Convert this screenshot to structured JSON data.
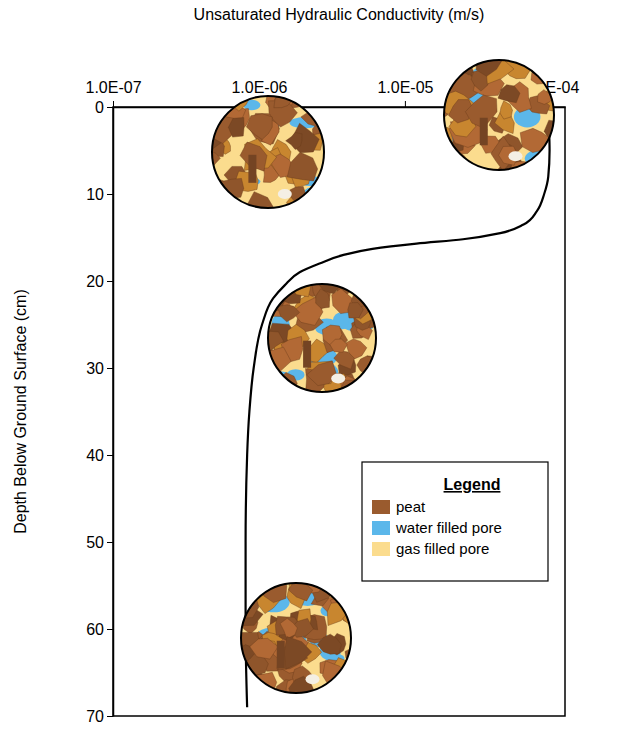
{
  "chart_data": {
    "type": "line",
    "x_label": "Unsaturated Hydraulic Conductivity (m/s)",
    "y_label": "Depth Below Ground Surface (cm)",
    "log": "x",
    "grid": false,
    "xlim": [
      1e-07,
      0.000125
    ],
    "xticks": [
      {
        "value": 1e-07,
        "label": "1.0E-07"
      },
      {
        "value": 1e-06,
        "label": "1.0E-06"
      },
      {
        "value": 1e-05,
        "label": "1.0E-05"
      },
      {
        "value": 0.0001,
        "label": "1.0E-04"
      }
    ],
    "ylim": [
      0,
      70
    ],
    "yticks": [
      0,
      10,
      20,
      30,
      40,
      50,
      60,
      70
    ],
    "color": "#000000",
    "x": [
      9.6e-05,
      9.7e-05,
      9.8e-05,
      9.6e-05,
      9e-05,
      8e-05,
      6.5e-05,
      4.5e-05,
      2.5e-05,
      1.2e-05,
      6e-06,
      3.8e-06,
      2.6e-06,
      1.9e-06,
      1.5e-06,
      1.25e-06,
      1.05e-06,
      9.2e-07,
      8.6e-07,
      8.3e-07,
      8.1e-07,
      8.1e-07,
      8.3e-07
    ],
    "values": [
      0,
      2,
      5,
      8,
      10,
      12,
      13.5,
      14.5,
      15.2,
      15.7,
      16.3,
      17,
      18,
      19,
      20.5,
      22,
      25,
      30,
      35,
      40,
      50,
      60,
      69
    ],
    "legend": "lower right",
    "legend_title": "Legend",
    "legend_entries": [
      {
        "name": "peat",
        "color": "#9a5b2e"
      },
      {
        "name": "water filled pore",
        "color": "#5bb7ea"
      },
      {
        "name": "gas filled pore",
        "color": "#fbdc8e"
      }
    ]
  }
}
